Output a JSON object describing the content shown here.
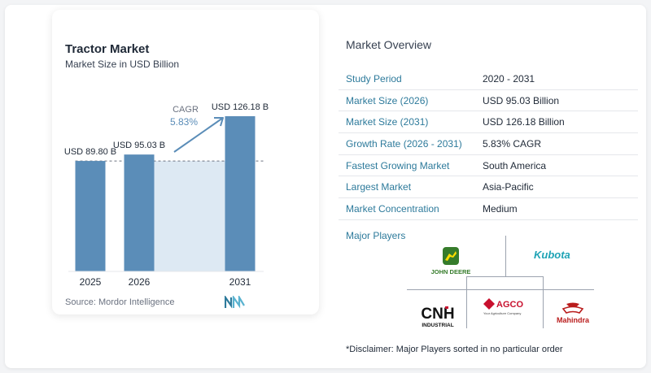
{
  "chart": {
    "title": "Tractor Market",
    "subtitle": "Market Size in USD Billion",
    "source": "Source:  Mordor Intelligence",
    "cagr_label": "CAGR",
    "cagr_value": "5.83%"
  },
  "chart_data": {
    "type": "bar",
    "title": "Tractor Market",
    "subtitle": "Market Size in USD Billion",
    "categories": [
      "2025",
      "2026",
      "2031"
    ],
    "values": [
      89.8,
      95.03,
      126.18
    ],
    "data_labels": [
      "USD 89.80 B",
      "USD 95.03 B",
      "USD 126.18 B"
    ],
    "annotation": "CAGR 5.83%",
    "bar_color": "#5b8db8",
    "gap_fill_color": "#dde9f3",
    "grid": false
  },
  "overview": {
    "title": "Market Overview",
    "rows": [
      {
        "label": "Study Period",
        "value": "2020 - 2031"
      },
      {
        "label": "Market Size (2026)",
        "value": "USD 95.03 Billion"
      },
      {
        "label": "Market Size (2031)",
        "value": "USD 126.18 Billion"
      },
      {
        "label": "Growth Rate (2026 - 2031)",
        "value": "5.83% CAGR"
      },
      {
        "label": "Fastest Growing Market",
        "value": "South America"
      },
      {
        "label": "Largest Market",
        "value": "Asia-Pacific"
      },
      {
        "label": "Market Concentration",
        "value": "Medium"
      }
    ]
  },
  "players": {
    "title": "Major Players",
    "logos": [
      {
        "name": "John Deere",
        "text": "JOHN DEERE",
        "color": "#367c2b",
        "accent": "#ffde00"
      },
      {
        "name": "Kubota",
        "text": "Kubota",
        "color": "#1fa3b5"
      },
      {
        "name": "CNH Industrial",
        "text": "CNH",
        "subtext": "INDUSTRIAL",
        "color": "#111111",
        "accent": "#c8102e"
      },
      {
        "name": "AGCO",
        "text": "AGCO",
        "subtext": "Your Agriculture Company",
        "color": "#c8102e"
      },
      {
        "name": "Mahindra",
        "text": "Mahindra",
        "color": "#b91c1c"
      }
    ]
  },
  "disclaimer": "*Disclaimer: Major Players sorted in no particular order"
}
